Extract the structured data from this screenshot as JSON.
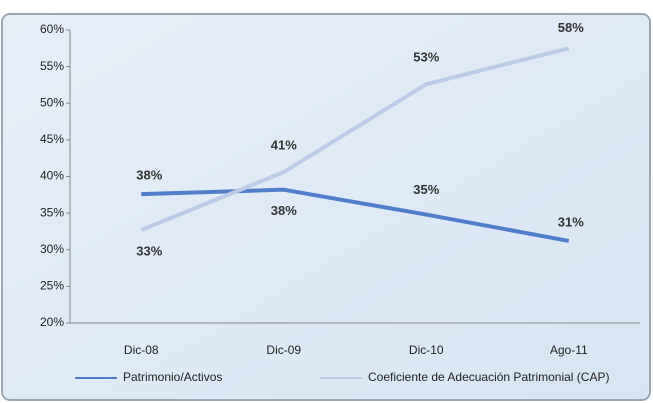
{
  "chart_data": {
    "type": "line",
    "categories": [
      "Dic-08",
      "Dic-09",
      "Dic-10",
      "Ago-11"
    ],
    "series": [
      {
        "name": "Patrimonio/Activos",
        "color": "#4f7fcc",
        "values": [
          37.6,
          38.2,
          34.8,
          31.2
        ],
        "value_labels": [
          "38%",
          "38%",
          "35%",
          "31%"
        ]
      },
      {
        "name": "Coeficiente de Adecuación Patrimonial (CAP)",
        "color": "#bccbe8",
        "values": [
          32.7,
          40.6,
          52.6,
          57.5
        ],
        "value_labels": [
          "33%",
          "41%",
          "53%",
          "58%"
        ]
      }
    ],
    "ylim": [
      20,
      60
    ],
    "yticks": [
      {
        "value": 20,
        "label": "20%"
      },
      {
        "value": 25,
        "label": "25%"
      },
      {
        "value": 30,
        "label": "30%"
      },
      {
        "value": 35,
        "label": "35%"
      },
      {
        "value": 40,
        "label": "40%"
      },
      {
        "value": 45,
        "label": "45%"
      },
      {
        "value": 50,
        "label": "50%"
      },
      {
        "value": 55,
        "label": "55%"
      },
      {
        "value": 60,
        "label": "60%"
      }
    ],
    "legend": "bottom"
  }
}
